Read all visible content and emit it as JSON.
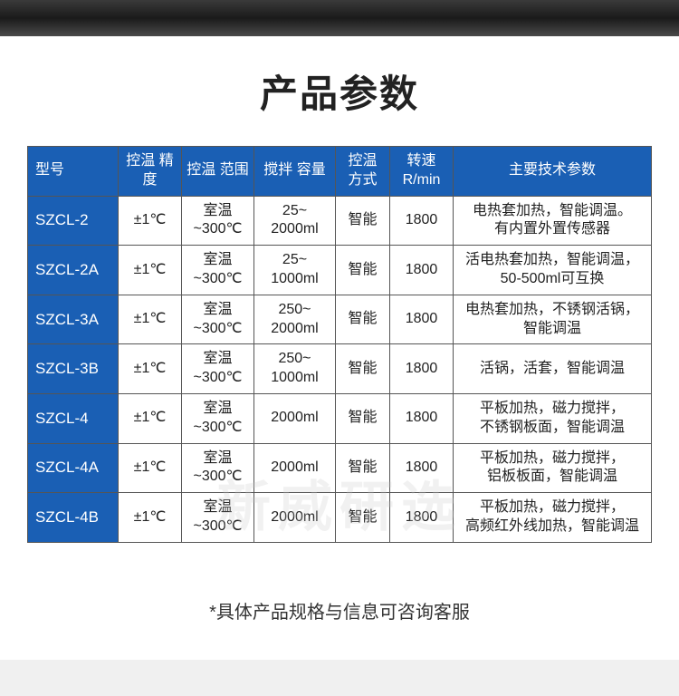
{
  "title": "产品参数",
  "footnote": "*具体产品规格与信息可咨询客服",
  "watermark": "新威研选",
  "table": {
    "columns": [
      "型号",
      "控温\n精度",
      "控温\n范围",
      "搅拌\n容量",
      "控温\n方式",
      "转速\nR/min",
      "主要技术参数"
    ],
    "col_widths": [
      "100px",
      "70px",
      "80px",
      "90px",
      "60px",
      "70px",
      "auto"
    ],
    "header_bg": "#1a5fb4",
    "header_color": "#ffffff",
    "border_color": "#555555",
    "cell_color": "#222222",
    "rows": [
      {
        "model": "SZCL-2",
        "precision": "±1℃",
        "range": "室温\n~300℃",
        "capacity": "25~\n2000ml",
        "method": "智能",
        "speed": "1800",
        "spec": "电热套加热，智能调温。\n有内置外置传感器"
      },
      {
        "model": "SZCL-2A",
        "precision": "±1℃",
        "range": "室温\n~300℃",
        "capacity": "25~\n1000ml",
        "method": "智能",
        "speed": "1800",
        "spec": "活电热套加热，智能调温，\n50-500ml可互换"
      },
      {
        "model": "SZCL-3A",
        "precision": "±1℃",
        "range": "室温\n~300℃",
        "capacity": "250~\n2000ml",
        "method": "智能",
        "speed": "1800",
        "spec": "电热套加热，不锈钢活锅，\n智能调温"
      },
      {
        "model": "SZCL-3B",
        "precision": "±1℃",
        "range": "室温\n~300℃",
        "capacity": "250~\n1000ml",
        "method": "智能",
        "speed": "1800",
        "spec": "活锅，活套，智能调温"
      },
      {
        "model": "SZCL-4",
        "precision": "±1℃",
        "range": "室温\n~300℃",
        "capacity": "2000ml",
        "method": "智能",
        "speed": "1800",
        "spec": "平板加热，磁力搅拌，\n不锈钢板面，智能调温"
      },
      {
        "model": "SZCL-4A",
        "precision": "±1℃",
        "range": "室温\n~300℃",
        "capacity": "2000ml",
        "method": "智能",
        "speed": "1800",
        "spec": "平板加热，磁力搅拌，\n铝板板面，智能调温"
      },
      {
        "model": "SZCL-4B",
        "precision": "±1℃",
        "range": "室温\n~300℃",
        "capacity": "2000ml",
        "method": "智能",
        "speed": "1800",
        "spec": "平板加热，磁力搅拌，\n高频红外线加热，智能调温"
      }
    ]
  }
}
